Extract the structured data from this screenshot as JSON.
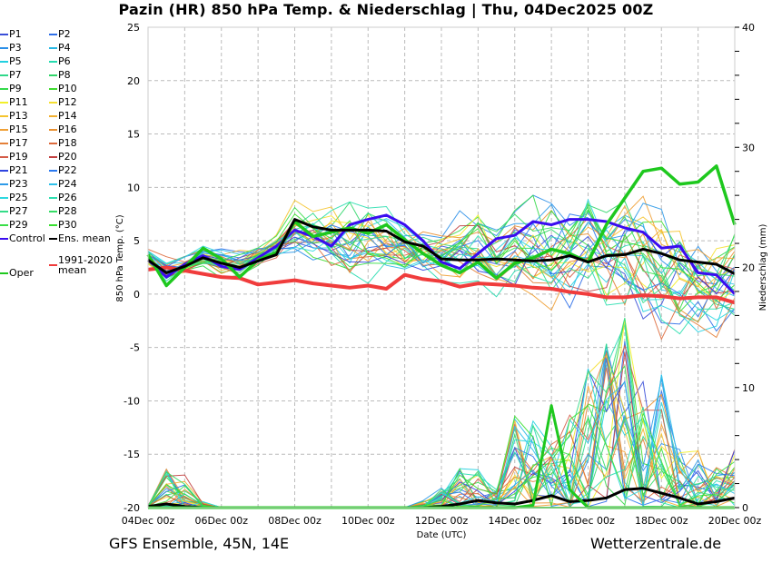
{
  "title": "Pazin  (HR)  850 hPa Temp. & Niederschlag | Thu, 04Dec2025 00Z",
  "footer": {
    "left": "GFS Ensemble, 45N, 14E",
    "right": "Wetterzentrale.de"
  },
  "legend": [
    {
      "label": "P1",
      "color": "#3a4fd8"
    },
    {
      "label": "P2",
      "color": "#2f6fe8"
    },
    {
      "label": "P3",
      "color": "#2b8fe8"
    },
    {
      "label": "P4",
      "color": "#28b8e4"
    },
    {
      "label": "P5",
      "color": "#22d0e0"
    },
    {
      "label": "P6",
      "color": "#26dcb0"
    },
    {
      "label": "P7",
      "color": "#2fd88a"
    },
    {
      "label": "P8",
      "color": "#30d66a"
    },
    {
      "label": "P9",
      "color": "#34d94a"
    },
    {
      "label": "P10",
      "color": "#3fdc30"
    },
    {
      "label": "P11",
      "color": "#f2ef2a"
    },
    {
      "label": "P12",
      "color": "#f5df30"
    },
    {
      "label": "P13",
      "color": "#f5c42e"
    },
    {
      "label": "P14",
      "color": "#f2b030"
    },
    {
      "label": "P15",
      "color": "#f0a035"
    },
    {
      "label": "P16",
      "color": "#e99030"
    },
    {
      "label": "P17",
      "color": "#e48038"
    },
    {
      "label": "P18",
      "color": "#dd6a3c"
    },
    {
      "label": "P19",
      "color": "#d45c48"
    },
    {
      "label": "P20",
      "color": "#c24040"
    },
    {
      "label": "P21",
      "color": "#2f45e0"
    },
    {
      "label": "P22",
      "color": "#2c7af0"
    },
    {
      "label": "P23",
      "color": "#2e9ae8"
    },
    {
      "label": "P24",
      "color": "#2ec0ea"
    },
    {
      "label": "P25",
      "color": "#2ed8e0"
    },
    {
      "label": "P26",
      "color": "#2edfb0"
    },
    {
      "label": "P27",
      "color": "#34dc88"
    },
    {
      "label": "P28",
      "color": "#36dd66"
    },
    {
      "label": "P29",
      "color": "#3ade48"
    },
    {
      "label": "P30",
      "color": "#38e030"
    },
    {
      "label": "Control",
      "color": "#3a0cf0"
    },
    {
      "label": "Ens. mean",
      "color": "#000000"
    },
    {
      "label": "Oper",
      "color": "#1ec81e"
    },
    {
      "label": "1991-2020 mean",
      "color": "#f03c3c"
    }
  ],
  "chart_data": {
    "type": "line",
    "title": "Pazin  (HR)  850 hPa Temp. & Niederschlag | Thu, 04Dec2025 00Z",
    "xlabel": "Date (UTC)",
    "ylabel": "850 hPa Temp. (°C)",
    "y2label": "Niederschlag (mm)",
    "x_unit": "hours since 04Dec2025 00Z",
    "xlim": [
      0,
      384
    ],
    "ylim": [
      -20,
      25
    ],
    "y2lim": [
      0,
      40
    ],
    "x_ticks": [
      0,
      48,
      96,
      144,
      192,
      240,
      288,
      336,
      384
    ],
    "x_tick_labels": [
      "04Dec 00z",
      "06Dec 00z",
      "08Dec 00z",
      "10Dec 00z",
      "12Dec 00z",
      "14Dec 00z",
      "16Dec 00z",
      "18Dec 00z",
      "20Dec 00z"
    ],
    "y_ticks": [
      25,
      20,
      15,
      10,
      5,
      0,
      -5,
      -10,
      -15,
      -20
    ],
    "y2_ticks": [
      40,
      30,
      20,
      10,
      0
    ],
    "grid": true,
    "legend_position": "left",
    "x_step_hours": 12,
    "temperature_series": [
      {
        "name": "Control",
        "values": [
          3.2,
          1.6,
          2.8,
          3.6,
          2.6,
          2.3,
          3.4,
          4.5,
          6.0,
          5.4,
          4.5,
          6.5,
          7.0,
          7.4,
          6.5,
          5.0,
          3.0,
          2.4,
          3.8,
          5.2,
          5.5,
          6.8,
          6.5,
          7.0,
          7.0,
          6.8,
          6.2,
          5.8,
          4.3,
          4.5,
          2.0,
          1.8,
          0.0
        ]
      },
      {
        "name": "Ens. mean",
        "values": [
          3.2,
          2.0,
          2.6,
          3.4,
          2.9,
          2.5,
          3.1,
          3.7,
          7.0,
          6.3,
          6.0,
          6.0,
          6.0,
          5.9,
          4.9,
          4.5,
          3.3,
          3.2,
          3.2,
          3.3,
          3.2,
          3.1,
          3.2,
          3.6,
          3.0,
          3.6,
          3.7,
          4.2,
          3.8,
          3.2,
          3.0,
          2.8,
          1.9
        ]
      },
      {
        "name": "Oper",
        "values": [
          3.7,
          0.8,
          2.5,
          4.3,
          3.3,
          1.6,
          3.2,
          3.9,
          6.8,
          5.4,
          5.8,
          6.2,
          5.7,
          6.5,
          5.1,
          3.8,
          2.7,
          2.0,
          3.0,
          1.5,
          2.9,
          3.4,
          4.2,
          3.8,
          3.0,
          6.5,
          9.0,
          11.5,
          11.8,
          10.3,
          10.5,
          12.0,
          6.5
        ]
      },
      {
        "name": "1991-2020 mean",
        "values": [
          2.3,
          2.5,
          2.2,
          1.9,
          1.6,
          1.5,
          0.9,
          1.1,
          1.3,
          1.0,
          0.8,
          0.6,
          0.8,
          0.5,
          1.8,
          1.4,
          1.2,
          0.7,
          1.0,
          0.9,
          0.8,
          0.6,
          0.5,
          0.2,
          0.0,
          -0.3,
          -0.3,
          -0.1,
          -0.2,
          -0.4,
          -0.3,
          -0.3,
          -0.8
        ]
      }
    ],
    "temperature_member_envelope": {
      "name": "P1–P30 members",
      "min": [
        2.8,
        1.0,
        1.8,
        2.5,
        1.5,
        1.2,
        2.2,
        2.8,
        3.0,
        2.5,
        1.5,
        0.5,
        0.5,
        1.0,
        0.8,
        0.8,
        0.5,
        0.5,
        1.0,
        -0.5,
        0.0,
        -1.0,
        -1.5,
        -2.0,
        -2.5,
        -3.0,
        -3.5,
        -4.0,
        -5.0,
        -4.5,
        -4.0,
        -4.5,
        -3.5
      ],
      "max": [
        4.2,
        3.5,
        3.8,
        4.5,
        4.5,
        4.3,
        4.8,
        6.0,
        9.0,
        9.0,
        9.5,
        9.8,
        10.2,
        9.5,
        8.0,
        7.5,
        7.5,
        8.5,
        8.5,
        7.0,
        9.0,
        9.8,
        9.8,
        10.0,
        12.2,
        9.5,
        11.5,
        10.5,
        9.0,
        8.5,
        7.5,
        7.5,
        8.5
      ]
    },
    "precipitation_series": [
      {
        "name": "Ens. mean",
        "unit": "mm",
        "values": [
          0.1,
          0.3,
          0.1,
          0.0,
          0.0,
          0.0,
          0.0,
          0.0,
          0.0,
          0.0,
          0.0,
          0.0,
          0.0,
          0.0,
          0.0,
          0.0,
          0.1,
          0.3,
          0.6,
          0.4,
          0.3,
          0.6,
          1.0,
          0.5,
          0.6,
          0.8,
          1.5,
          1.6,
          1.2,
          0.8,
          0.3,
          0.5,
          0.8
        ]
      },
      {
        "name": "Oper",
        "unit": "mm",
        "values": [
          0.0,
          0.0,
          0.0,
          0.0,
          0.0,
          0.0,
          0.0,
          0.0,
          0.0,
          0.0,
          0.0,
          0.0,
          0.0,
          0.0,
          0.0,
          0.0,
          0.0,
          0.0,
          0.0,
          0.0,
          0.0,
          0.2,
          8.5,
          1.5,
          0.0,
          0.0,
          0.0,
          0.0,
          0.0,
          0.0,
          0.0,
          0.0,
          0.0
        ]
      },
      {
        "name": "P members max",
        "unit": "mm",
        "values": [
          0.2,
          3.2,
          2.8,
          0.5,
          0.0,
          0.0,
          0.0,
          0.0,
          0.0,
          0.0,
          0.0,
          0.0,
          0.0,
          0.0,
          0.0,
          0.6,
          1.8,
          3.5,
          3.8,
          1.5,
          8.0,
          7.5,
          5.5,
          8.0,
          12.0,
          15.0,
          16.0,
          10.5,
          12.5,
          5.0,
          5.0,
          4.5,
          5.0
        ]
      }
    ]
  }
}
